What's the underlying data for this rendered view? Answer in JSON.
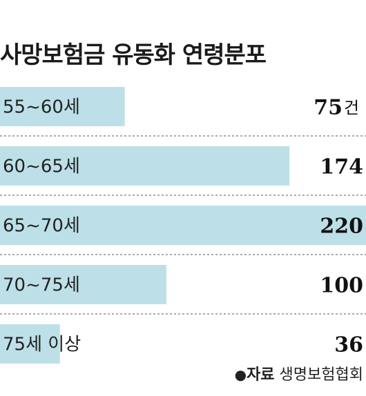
{
  "chart_data": {
    "type": "bar",
    "title": "사망보험금 유동화 연령분포",
    "categories": [
      "55~60세",
      "60~65세",
      "65~70세",
      "70~75세",
      "75세 이상"
    ],
    "values": [
      75,
      174,
      220,
      100,
      36
    ],
    "unit": "건",
    "bar_color": "#bde0e8",
    "source_prefix": "자료",
    "source": "생명보험협회"
  }
}
